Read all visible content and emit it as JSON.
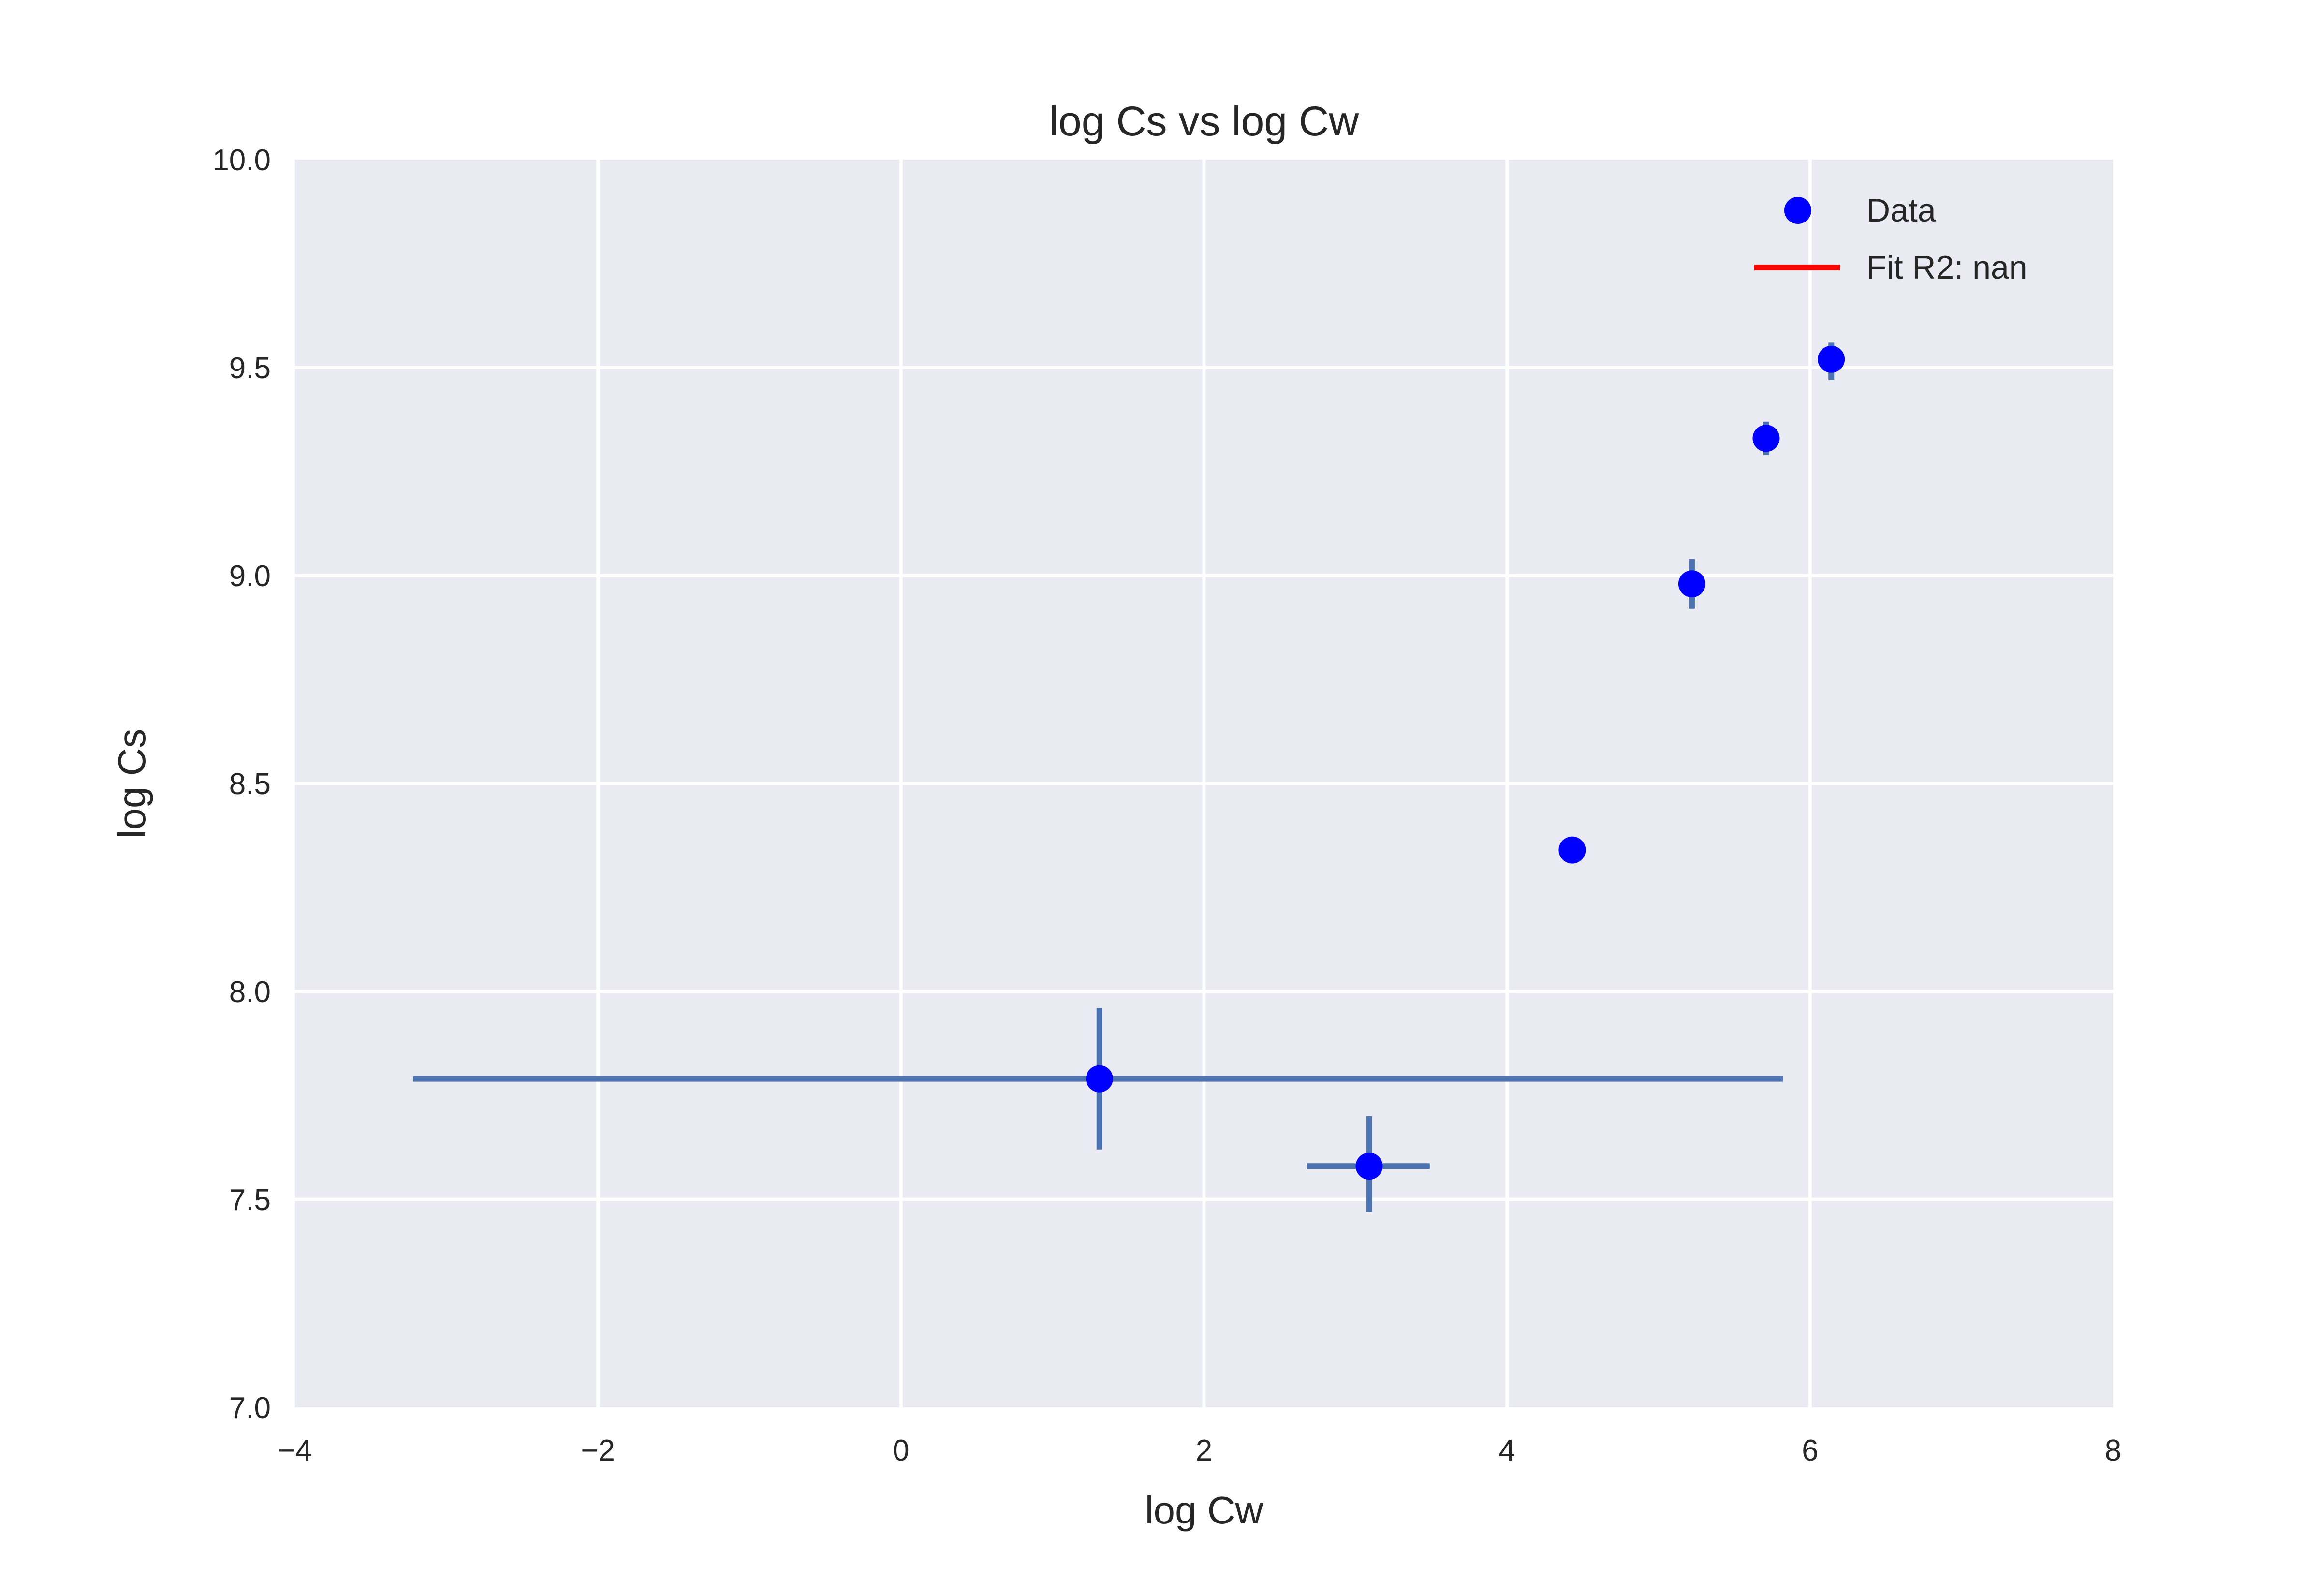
{
  "chart_data": {
    "type": "scatter",
    "title": "log Cs vs log Cw",
    "xlabel": "log Cw",
    "ylabel": "log Cs",
    "xlim": [
      -4,
      8
    ],
    "ylim": [
      7.0,
      10.0
    ],
    "x_ticks": [
      -4,
      -2,
      0,
      2,
      4,
      6,
      8
    ],
    "x_tick_labels": [
      "−4",
      "−2",
      "0",
      "2",
      "4",
      "6",
      "8"
    ],
    "y_ticks": [
      7.0,
      7.5,
      8.0,
      8.5,
      9.0,
      9.5,
      10.0
    ],
    "y_tick_labels": [
      "7.0",
      "7.5",
      "8.0",
      "8.5",
      "9.0",
      "9.5",
      "10.0"
    ],
    "grid": true,
    "legend_position": "top-right",
    "series": [
      {
        "name": "Data",
        "kind": "points-with-error-bars",
        "color": "#0000ff",
        "errorbar_color": "#4c72b0",
        "points": [
          {
            "x": 1.31,
            "y": 7.79,
            "xerr_low": -3.22,
            "xerr_high": 5.82,
            "yerr_low": 7.62,
            "yerr_high": 7.96
          },
          {
            "x": 3.09,
            "y": 7.58,
            "xerr_low": 2.68,
            "xerr_high": 3.49,
            "yerr_low": 7.47,
            "yerr_high": 7.7
          },
          {
            "x": 4.43,
            "y": 8.34,
            "xerr_low": 4.43,
            "xerr_high": 4.43,
            "yerr_low": 8.34,
            "yerr_high": 8.34
          },
          {
            "x": 5.22,
            "y": 8.98,
            "xerr_low": 5.15,
            "xerr_high": 5.3,
            "yerr_low": 8.92,
            "yerr_high": 9.04
          },
          {
            "x": 5.71,
            "y": 9.33,
            "xerr_low": 5.68,
            "xerr_high": 5.74,
            "yerr_low": 9.29,
            "yerr_high": 9.37
          },
          {
            "x": 6.14,
            "y": 9.52,
            "xerr_low": 6.11,
            "xerr_high": 6.17,
            "yerr_low": 9.47,
            "yerr_high": 9.56
          }
        ]
      },
      {
        "name": "Fit R2: nan",
        "kind": "line",
        "color": "#ff0000",
        "points": []
      }
    ]
  }
}
